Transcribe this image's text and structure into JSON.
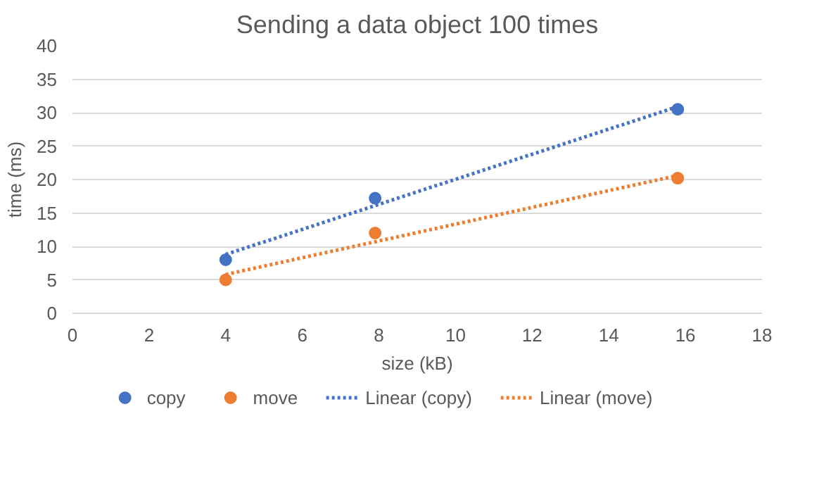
{
  "chart_data": {
    "type": "scatter",
    "title": "Sending a data object 100 times",
    "xlabel": "size (kB)",
    "ylabel": "time (ms)",
    "series": [
      {
        "name": "copy",
        "color": "#4472c4",
        "marker": "circle",
        "x": [
          4,
          7.9,
          15.8
        ],
        "values": [
          8,
          17.2,
          30.5
        ]
      },
      {
        "name": "move",
        "color": "#ed7d31",
        "marker": "circle",
        "x": [
          4,
          7.9,
          15.8
        ],
        "values": [
          5,
          12,
          20.2
        ]
      },
      {
        "name": "Linear (copy)",
        "type": "line",
        "color": "#4472c4",
        "line_style": "dotted",
        "marker": "none",
        "x": [
          4,
          15.8
        ],
        "values": [
          8.8,
          30.9
        ]
      },
      {
        "name": "Linear (move)",
        "type": "line",
        "color": "#ed7d31",
        "line_style": "dotted",
        "marker": "none",
        "x": [
          4,
          15.8
        ],
        "values": [
          5.8,
          20.6
        ]
      }
    ],
    "xlim": [
      0,
      18
    ],
    "xticks": [
      0,
      2,
      4,
      6,
      8,
      10,
      12,
      14,
      16,
      18
    ],
    "ylim": [
      0,
      40
    ],
    "yticks": [
      0,
      5,
      10,
      15,
      20,
      25,
      30,
      35,
      40
    ],
    "grid": "y",
    "legend": "bottom"
  }
}
